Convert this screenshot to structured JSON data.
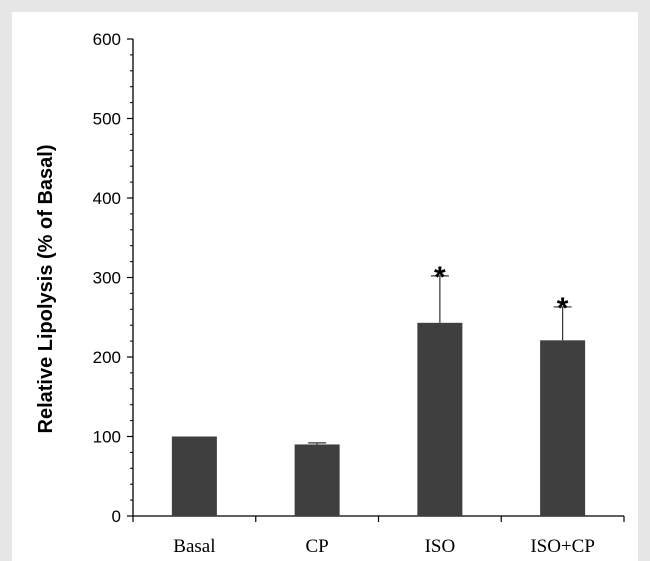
{
  "chart_data": {
    "type": "bar",
    "title": "",
    "xlabel": "",
    "ylabel": "Relative Lipolysis (% of Basal)",
    "ylim": [
      0,
      600
    ],
    "yticks": [
      0,
      100,
      200,
      300,
      400,
      500,
      600
    ],
    "categories": [
      "Basal",
      "CP",
      "ISO",
      "ISO+CP"
    ],
    "values": [
      100,
      90,
      243,
      221
    ],
    "error_upper": [
      0,
      2,
      59,
      42
    ],
    "significance": [
      "",
      "",
      "*",
      "*"
    ],
    "bar_color": "#3f3f3f",
    "grid": false,
    "legend": "none"
  }
}
